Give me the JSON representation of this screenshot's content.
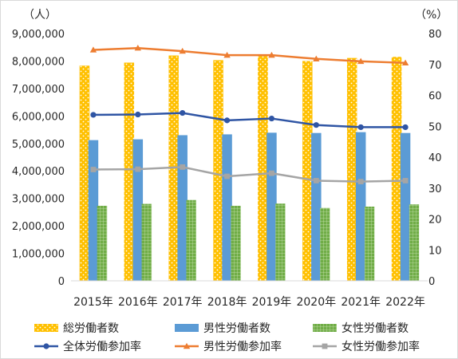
{
  "chart_data": {
    "type": "bar",
    "categories": [
      "2015年",
      "2016年",
      "2017年",
      "2018年",
      "2019年",
      "2020年",
      "2021年",
      "2022年"
    ],
    "left_axis": {
      "unit": "（人）",
      "ylim": [
        0,
        9000000
      ],
      "ticks": [
        "0",
        "1,000,000",
        "2,000,000",
        "3,000,000",
        "4,000,000",
        "5,000,000",
        "6,000,000",
        "7,000,000",
        "8,000,000",
        "9,000,000"
      ]
    },
    "right_axis": {
      "unit": "（%）",
      "ylim": [
        0,
        80
      ],
      "ticks": [
        "0",
        "10",
        "20",
        "30",
        "40",
        "50",
        "60",
        "70",
        "80"
      ]
    },
    "bar_series": [
      {
        "name": "総労働者数",
        "color": "#ffc000",
        "pattern": "dots",
        "values": [
          7830000,
          7940000,
          8200000,
          8030000,
          8190000,
          8000000,
          8110000,
          8150000
        ]
      },
      {
        "name": "男性労働者数",
        "color": "#5b9bd5",
        "pattern": "solid",
        "values": [
          5120000,
          5150000,
          5300000,
          5330000,
          5390000,
          5380000,
          5410000,
          5380000
        ]
      },
      {
        "name": "女性労働者数",
        "color": "#70ad47",
        "pattern": "grid",
        "values": [
          2730000,
          2800000,
          2940000,
          2730000,
          2810000,
          2650000,
          2700000,
          2780000
        ]
      }
    ],
    "line_series": [
      {
        "name": "全体労働参加率",
        "color": "#2f55a4",
        "marker": "circle",
        "values": [
          53.7,
          53.8,
          54.3,
          51.9,
          52.5,
          50.4,
          49.7,
          49.7
        ]
      },
      {
        "name": "男性労働参加率",
        "color": "#ed7d31",
        "marker": "triangle",
        "values": [
          74.7,
          75.3,
          74.3,
          73.0,
          73.0,
          71.8,
          71.0,
          70.5
        ]
      },
      {
        "name": "女性労働参加率",
        "color": "#a5a5a5",
        "marker": "square",
        "values": [
          36.0,
          36.1,
          36.8,
          33.8,
          34.8,
          32.4,
          32.1,
          32.4
        ]
      }
    ],
    "grid": false,
    "legend_position": "bottom"
  }
}
